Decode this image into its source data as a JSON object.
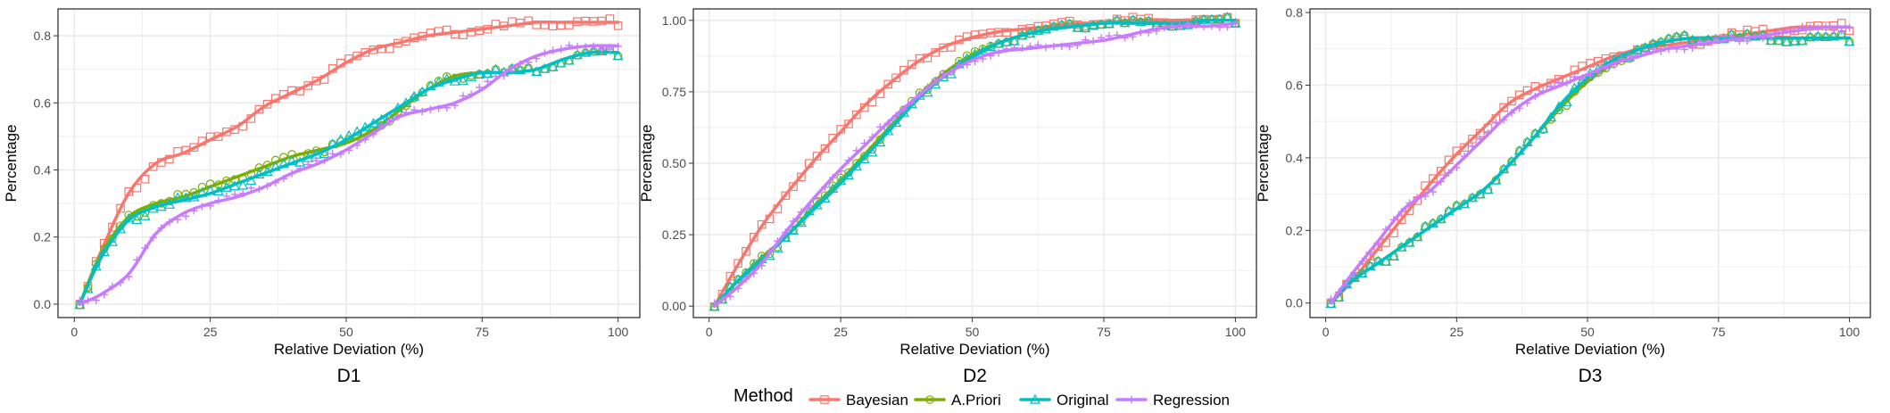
{
  "colors": {
    "Bayesian": "#F8766D",
    "A.Priori": "#7CAE00",
    "Original": "#00BFC4",
    "Regression": "#C77CFF",
    "grid": "#ebebeb",
    "panel_border": "#333333",
    "axis_text": "#4d4d4d"
  },
  "legend": {
    "title": "Method",
    "position": "bottom",
    "items": [
      {
        "name": "Bayesian",
        "marker": "square"
      },
      {
        "name": "A.Priori",
        "marker": "circle"
      },
      {
        "name": "Original",
        "marker": "triangle"
      },
      {
        "name": "Regression",
        "marker": "plus"
      }
    ]
  },
  "chart_data": [
    {
      "type": "line",
      "title": "D1",
      "xlabel": "Relative Deviation (%)",
      "ylabel": "Percentage",
      "xlim": [
        -3,
        104
      ],
      "ylim": [
        -0.04,
        0.88
      ],
      "xticks": [
        0,
        25,
        50,
        75,
        100
      ],
      "yticks": [
        0.0,
        0.2,
        0.4,
        0.6,
        0.8
      ],
      "ytick_labels": [
        "0.0",
        "0.2",
        "0.4",
        "0.6",
        "0.8"
      ],
      "grid": true,
      "series": [
        {
          "name": "Bayesian",
          "marker": "square",
          "x": [
            1,
            5,
            10,
            15,
            20,
            25,
            30,
            35,
            40,
            45,
            50,
            55,
            60,
            65,
            70,
            75,
            80,
            85,
            90,
            95,
            100
          ],
          "values": [
            0.0,
            0.16,
            0.33,
            0.42,
            0.45,
            0.49,
            0.53,
            0.59,
            0.63,
            0.67,
            0.72,
            0.76,
            0.78,
            0.8,
            0.81,
            0.82,
            0.83,
            0.84,
            0.84,
            0.84,
            0.84
          ]
        },
        {
          "name": "A.Priori",
          "marker": "circle",
          "x": [
            1,
            5,
            10,
            15,
            20,
            25,
            30,
            35,
            40,
            45,
            50,
            55,
            60,
            65,
            70,
            75,
            80,
            85,
            90,
            95,
            100
          ],
          "values": [
            0.0,
            0.15,
            0.26,
            0.3,
            0.32,
            0.35,
            0.38,
            0.41,
            0.44,
            0.46,
            0.48,
            0.52,
            0.58,
            0.64,
            0.68,
            0.69,
            0.69,
            0.7,
            0.73,
            0.75,
            0.75
          ]
        },
        {
          "name": "Original",
          "marker": "triangle",
          "x": [
            1,
            5,
            10,
            15,
            20,
            25,
            30,
            35,
            40,
            45,
            50,
            55,
            60,
            65,
            70,
            75,
            80,
            85,
            90,
            95,
            100
          ],
          "values": [
            0.0,
            0.14,
            0.25,
            0.29,
            0.31,
            0.33,
            0.36,
            0.39,
            0.42,
            0.45,
            0.49,
            0.54,
            0.59,
            0.64,
            0.67,
            0.69,
            0.69,
            0.7,
            0.73,
            0.75,
            0.75
          ]
        },
        {
          "name": "Regression",
          "marker": "plus",
          "x": [
            1,
            5,
            10,
            15,
            20,
            25,
            30,
            35,
            40,
            45,
            50,
            55,
            60,
            65,
            70,
            75,
            80,
            85,
            90,
            95,
            100
          ],
          "values": [
            0.0,
            0.03,
            0.09,
            0.21,
            0.27,
            0.3,
            0.32,
            0.35,
            0.39,
            0.42,
            0.46,
            0.51,
            0.56,
            0.58,
            0.6,
            0.64,
            0.7,
            0.74,
            0.76,
            0.77,
            0.77
          ]
        }
      ]
    },
    {
      "type": "line",
      "title": "D2",
      "xlabel": "Relative Deviation (%)",
      "ylabel": "Percentage",
      "xlim": [
        -3,
        104
      ],
      "ylim": [
        -0.04,
        1.04
      ],
      "xticks": [
        0,
        25,
        50,
        75,
        100
      ],
      "yticks": [
        0.0,
        0.25,
        0.5,
        0.75,
        1.0
      ],
      "ytick_labels": [
        "0.00",
        "0.25",
        "0.50",
        "0.75",
        "1.00"
      ],
      "grid": true,
      "series": [
        {
          "name": "Bayesian",
          "marker": "square",
          "x": [
            1,
            5,
            10,
            15,
            20,
            25,
            30,
            35,
            40,
            45,
            50,
            55,
            60,
            65,
            70,
            75,
            80,
            85,
            90,
            95,
            100
          ],
          "values": [
            0.0,
            0.13,
            0.28,
            0.4,
            0.51,
            0.61,
            0.71,
            0.79,
            0.86,
            0.91,
            0.94,
            0.96,
            0.97,
            0.98,
            0.99,
            0.99,
            1.0,
            1.0,
            1.0,
            1.0,
            1.0
          ]
        },
        {
          "name": "A.Priori",
          "marker": "circle",
          "x": [
            1,
            5,
            10,
            15,
            20,
            25,
            30,
            35,
            40,
            45,
            50,
            55,
            60,
            65,
            70,
            75,
            80,
            85,
            90,
            95,
            100
          ],
          "values": [
            0.0,
            0.08,
            0.17,
            0.25,
            0.35,
            0.44,
            0.54,
            0.64,
            0.74,
            0.82,
            0.88,
            0.92,
            0.95,
            0.97,
            0.98,
            0.99,
            0.99,
            0.99,
            0.99,
            1.0,
            1.0
          ]
        },
        {
          "name": "Original",
          "marker": "triangle",
          "x": [
            1,
            5,
            10,
            15,
            20,
            25,
            30,
            35,
            40,
            45,
            50,
            55,
            60,
            65,
            70,
            75,
            80,
            85,
            90,
            95,
            100
          ],
          "values": [
            0.0,
            0.08,
            0.16,
            0.25,
            0.34,
            0.43,
            0.53,
            0.63,
            0.73,
            0.81,
            0.87,
            0.92,
            0.95,
            0.97,
            0.98,
            0.99,
            0.99,
            0.99,
            0.99,
            1.0,
            1.0
          ]
        },
        {
          "name": "Regression",
          "marker": "plus",
          "x": [
            1,
            5,
            10,
            15,
            20,
            25,
            30,
            35,
            40,
            45,
            50,
            55,
            60,
            65,
            70,
            75,
            80,
            85,
            90,
            95,
            100
          ],
          "values": [
            0.0,
            0.06,
            0.15,
            0.27,
            0.38,
            0.48,
            0.57,
            0.66,
            0.74,
            0.81,
            0.86,
            0.89,
            0.9,
            0.91,
            0.92,
            0.93,
            0.95,
            0.97,
            0.98,
            0.98,
            0.99
          ]
        }
      ]
    },
    {
      "type": "line",
      "title": "D3",
      "xlabel": "Relative Deviation (%)",
      "ylabel": "Percentage",
      "xlim": [
        -3,
        104
      ],
      "ylim": [
        -0.04,
        0.81
      ],
      "xticks": [
        0,
        25,
        50,
        75,
        100
      ],
      "yticks": [
        0.0,
        0.2,
        0.4,
        0.6,
        0.8
      ],
      "ytick_labels": [
        "0.0",
        "0.2",
        "0.4",
        "0.6",
        "0.8"
      ],
      "grid": true,
      "series": [
        {
          "name": "Bayesian",
          "marker": "square",
          "x": [
            1,
            5,
            10,
            15,
            20,
            25,
            30,
            35,
            40,
            45,
            50,
            55,
            60,
            65,
            70,
            75,
            80,
            85,
            90,
            95,
            100
          ],
          "values": [
            0.0,
            0.06,
            0.15,
            0.24,
            0.33,
            0.41,
            0.48,
            0.55,
            0.59,
            0.62,
            0.65,
            0.68,
            0.7,
            0.71,
            0.72,
            0.73,
            0.74,
            0.75,
            0.76,
            0.76,
            0.76
          ]
        },
        {
          "name": "A.Priori",
          "marker": "circle",
          "x": [
            1,
            5,
            10,
            15,
            20,
            25,
            30,
            35,
            40,
            45,
            50,
            55,
            60,
            65,
            70,
            75,
            80,
            85,
            90,
            95,
            100
          ],
          "values": [
            0.0,
            0.06,
            0.11,
            0.16,
            0.21,
            0.26,
            0.31,
            0.38,
            0.46,
            0.54,
            0.61,
            0.66,
            0.7,
            0.72,
            0.73,
            0.73,
            0.73,
            0.73,
            0.73,
            0.73,
            0.73
          ]
        },
        {
          "name": "Original",
          "marker": "triangle",
          "x": [
            1,
            5,
            10,
            15,
            20,
            25,
            30,
            35,
            40,
            45,
            50,
            55,
            60,
            65,
            70,
            75,
            80,
            85,
            90,
            95,
            100
          ],
          "values": [
            0.0,
            0.06,
            0.11,
            0.16,
            0.21,
            0.26,
            0.31,
            0.38,
            0.46,
            0.55,
            0.62,
            0.67,
            0.7,
            0.72,
            0.73,
            0.73,
            0.73,
            0.73,
            0.73,
            0.73,
            0.73
          ]
        },
        {
          "name": "Regression",
          "marker": "plus",
          "x": [
            1,
            5,
            10,
            15,
            20,
            25,
            30,
            35,
            40,
            45,
            50,
            55,
            60,
            65,
            70,
            75,
            80,
            85,
            90,
            95,
            100
          ],
          "values": [
            0.0,
            0.08,
            0.17,
            0.26,
            0.31,
            0.38,
            0.45,
            0.52,
            0.57,
            0.6,
            0.63,
            0.66,
            0.68,
            0.7,
            0.71,
            0.72,
            0.73,
            0.74,
            0.75,
            0.76,
            0.76
          ]
        }
      ]
    }
  ]
}
